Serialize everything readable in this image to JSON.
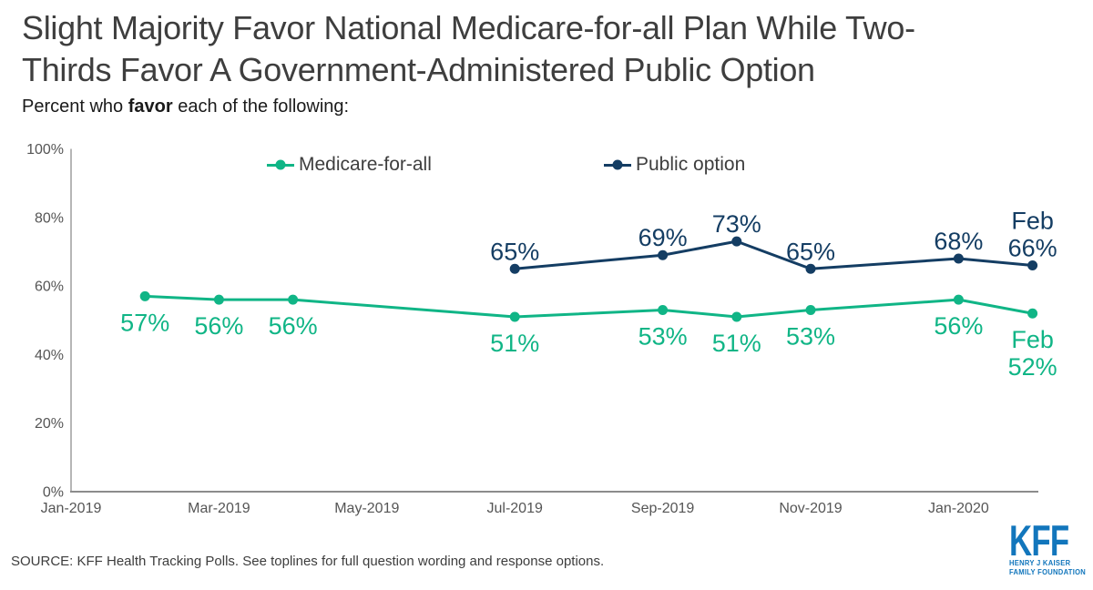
{
  "header": {
    "title_lines": [
      "Slight Majority Favor National Medicare-for-all Plan While Two-",
      "Thirds Favor A Government-Administered Public Option"
    ],
    "subtitle": {
      "prefix": "Percent who ",
      "bold": "favor",
      "suffix": " each of the following:"
    }
  },
  "chart_data": {
    "type": "line",
    "title": "Slight Majority Favor National Medicare-for-all Plan While Two-Thirds Favor A Government-Administered Public Option",
    "subtitle": "Percent who favor each of the following:",
    "grid": false,
    "legend_position": "top",
    "x_axis": {
      "unit": "month",
      "ticks": [
        {
          "label": "Jan-2019",
          "month": 0
        },
        {
          "label": "Mar-2019",
          "month": 2
        },
        {
          "label": "May-2019",
          "month": 4
        },
        {
          "label": "Jul-2019",
          "month": 6
        },
        {
          "label": "Sep-2019",
          "month": 8
        },
        {
          "label": "Nov-2019",
          "month": 10
        },
        {
          "label": "Jan-2020",
          "month": 12
        }
      ]
    },
    "y_axis": {
      "range": [
        0,
        100
      ],
      "ticks": [
        {
          "label": "0%",
          "value": 0
        },
        {
          "label": "20%",
          "value": 20
        },
        {
          "label": "40%",
          "value": 40
        },
        {
          "label": "60%",
          "value": 60
        },
        {
          "label": "80%",
          "value": 80
        },
        {
          "label": "100%",
          "value": 100
        }
      ]
    },
    "series": [
      {
        "name": "Medicare-for-all",
        "color": "#10b586",
        "points": [
          {
            "x": "Feb-2019",
            "month": 1,
            "value": 57,
            "label": "57%",
            "label_side": "below"
          },
          {
            "x": "Mar-2019",
            "month": 2,
            "value": 56,
            "label": "56%",
            "label_side": "below"
          },
          {
            "x": "Apr-2019",
            "month": 3,
            "value": 56,
            "label": "56%",
            "label_side": "below"
          },
          {
            "x": "Jul-2019",
            "month": 6,
            "value": 51,
            "label": "51%",
            "label_side": "below"
          },
          {
            "x": "Sep-2019",
            "month": 8,
            "value": 53,
            "label": "53%",
            "label_side": "below"
          },
          {
            "x": "Oct-2019",
            "month": 9,
            "value": 51,
            "label": "51%",
            "label_side": "below"
          },
          {
            "x": "Nov-2019",
            "month": 10,
            "value": 53,
            "label": "53%",
            "label_side": "below"
          },
          {
            "x": "Jan-2020",
            "month": 12,
            "value": 56,
            "label": "56%",
            "label_side": "below"
          },
          {
            "x": "Feb-2020",
            "month": 13,
            "value": 52,
            "label": [
              "Feb",
              "52%"
            ],
            "label_side": "below"
          }
        ]
      },
      {
        "name": "Public option",
        "color": "#143d63",
        "points": [
          {
            "x": "Jul-2019",
            "month": 6,
            "value": 65,
            "label": "65%",
            "label_side": "above"
          },
          {
            "x": "Sep-2019",
            "month": 8,
            "value": 69,
            "label": "69%",
            "label_side": "above"
          },
          {
            "x": "Oct-2019",
            "month": 9,
            "value": 73,
            "label": "73%",
            "label_side": "above"
          },
          {
            "x": "Nov-2019",
            "month": 10,
            "value": 65,
            "label": "65%",
            "label_side": "above"
          },
          {
            "x": "Jan-2020",
            "month": 12,
            "value": 68,
            "label": "68%",
            "label_side": "above"
          },
          {
            "x": "Feb-2020",
            "month": 13,
            "value": 66,
            "label": [
              "Feb",
              "66%"
            ],
            "label_side": "above"
          }
        ]
      }
    ]
  },
  "source": {
    "text": "SOURCE: KFF Health Tracking Polls. See toplines for full question wording and response options."
  },
  "logo": {
    "name": "KFF",
    "tagline": [
      "HENRY J KAISER",
      "FAMILY FOUNDATION"
    ],
    "color": "#1276bc"
  },
  "colors": {
    "title": "#3e3e3e",
    "axis_line": "#9e9e9e",
    "tick_label": "#555555",
    "background": "#ffffff",
    "medicare_green": "#10b586",
    "public_navy": "#143d63",
    "kff_blue": "#1276bc"
  }
}
